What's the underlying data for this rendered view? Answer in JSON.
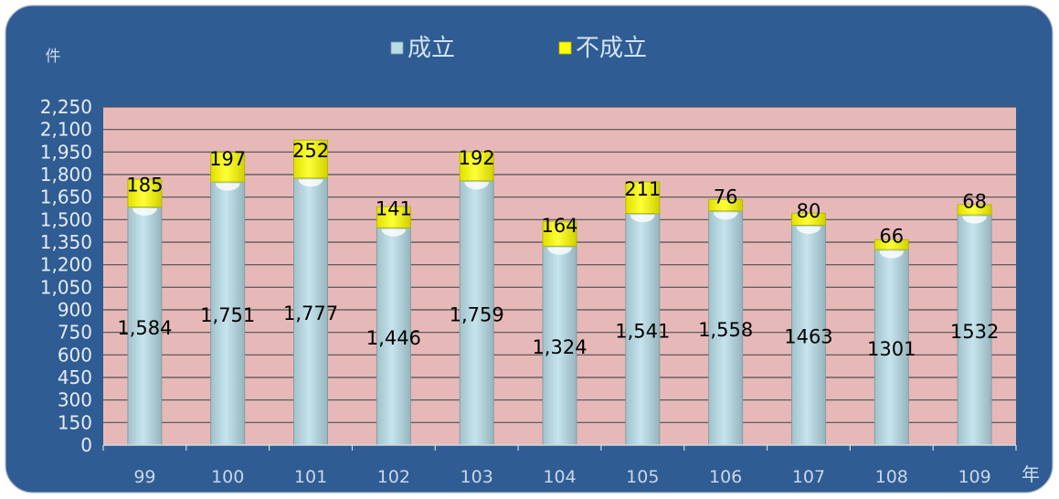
{
  "chart_data": {
    "type": "bar",
    "stacked": true,
    "categories": [
      "99",
      "100",
      "101",
      "102",
      "103",
      "104",
      "105",
      "106",
      "107",
      "108",
      "109"
    ],
    "series": [
      {
        "name": "成立",
        "color": "#b7dde8",
        "values": [
          1584,
          1751,
          1777,
          1446,
          1759,
          1324,
          1541,
          1558,
          1463,
          1301,
          1532
        ],
        "labels": [
          "1,584",
          "1,751",
          "1,777",
          "1,446",
          "1,759",
          "1,324",
          "1,541",
          "1,558",
          "1463",
          "1301",
          "1532"
        ]
      },
      {
        "name": "不成立",
        "color": "#ffff00",
        "values": [
          185,
          197,
          252,
          141,
          192,
          164,
          211,
          76,
          80,
          66,
          68
        ],
        "labels": [
          "185",
          "197",
          "252",
          "141",
          "192",
          "164",
          "211",
          "76",
          "80",
          "66",
          "68"
        ]
      }
    ],
    "xlabel": "年",
    "ylabel": "件",
    "ylim": [
      0,
      2250
    ],
    "yticks": [
      0,
      150,
      300,
      450,
      600,
      750,
      900,
      1050,
      1200,
      1350,
      1500,
      1650,
      1800,
      1950,
      2100,
      2250
    ],
    "ytick_labels": [
      "0",
      "150",
      "300",
      "450",
      "600",
      "750",
      "900",
      "1,050",
      "1,200",
      "1,350",
      "1,500",
      "1,650",
      "1,800",
      "1,950",
      "2,100",
      "2,250"
    ],
    "grid": true,
    "legend": "top-center",
    "background_color": "#2f5c93",
    "plot_background_color": "#e6b9b8"
  }
}
